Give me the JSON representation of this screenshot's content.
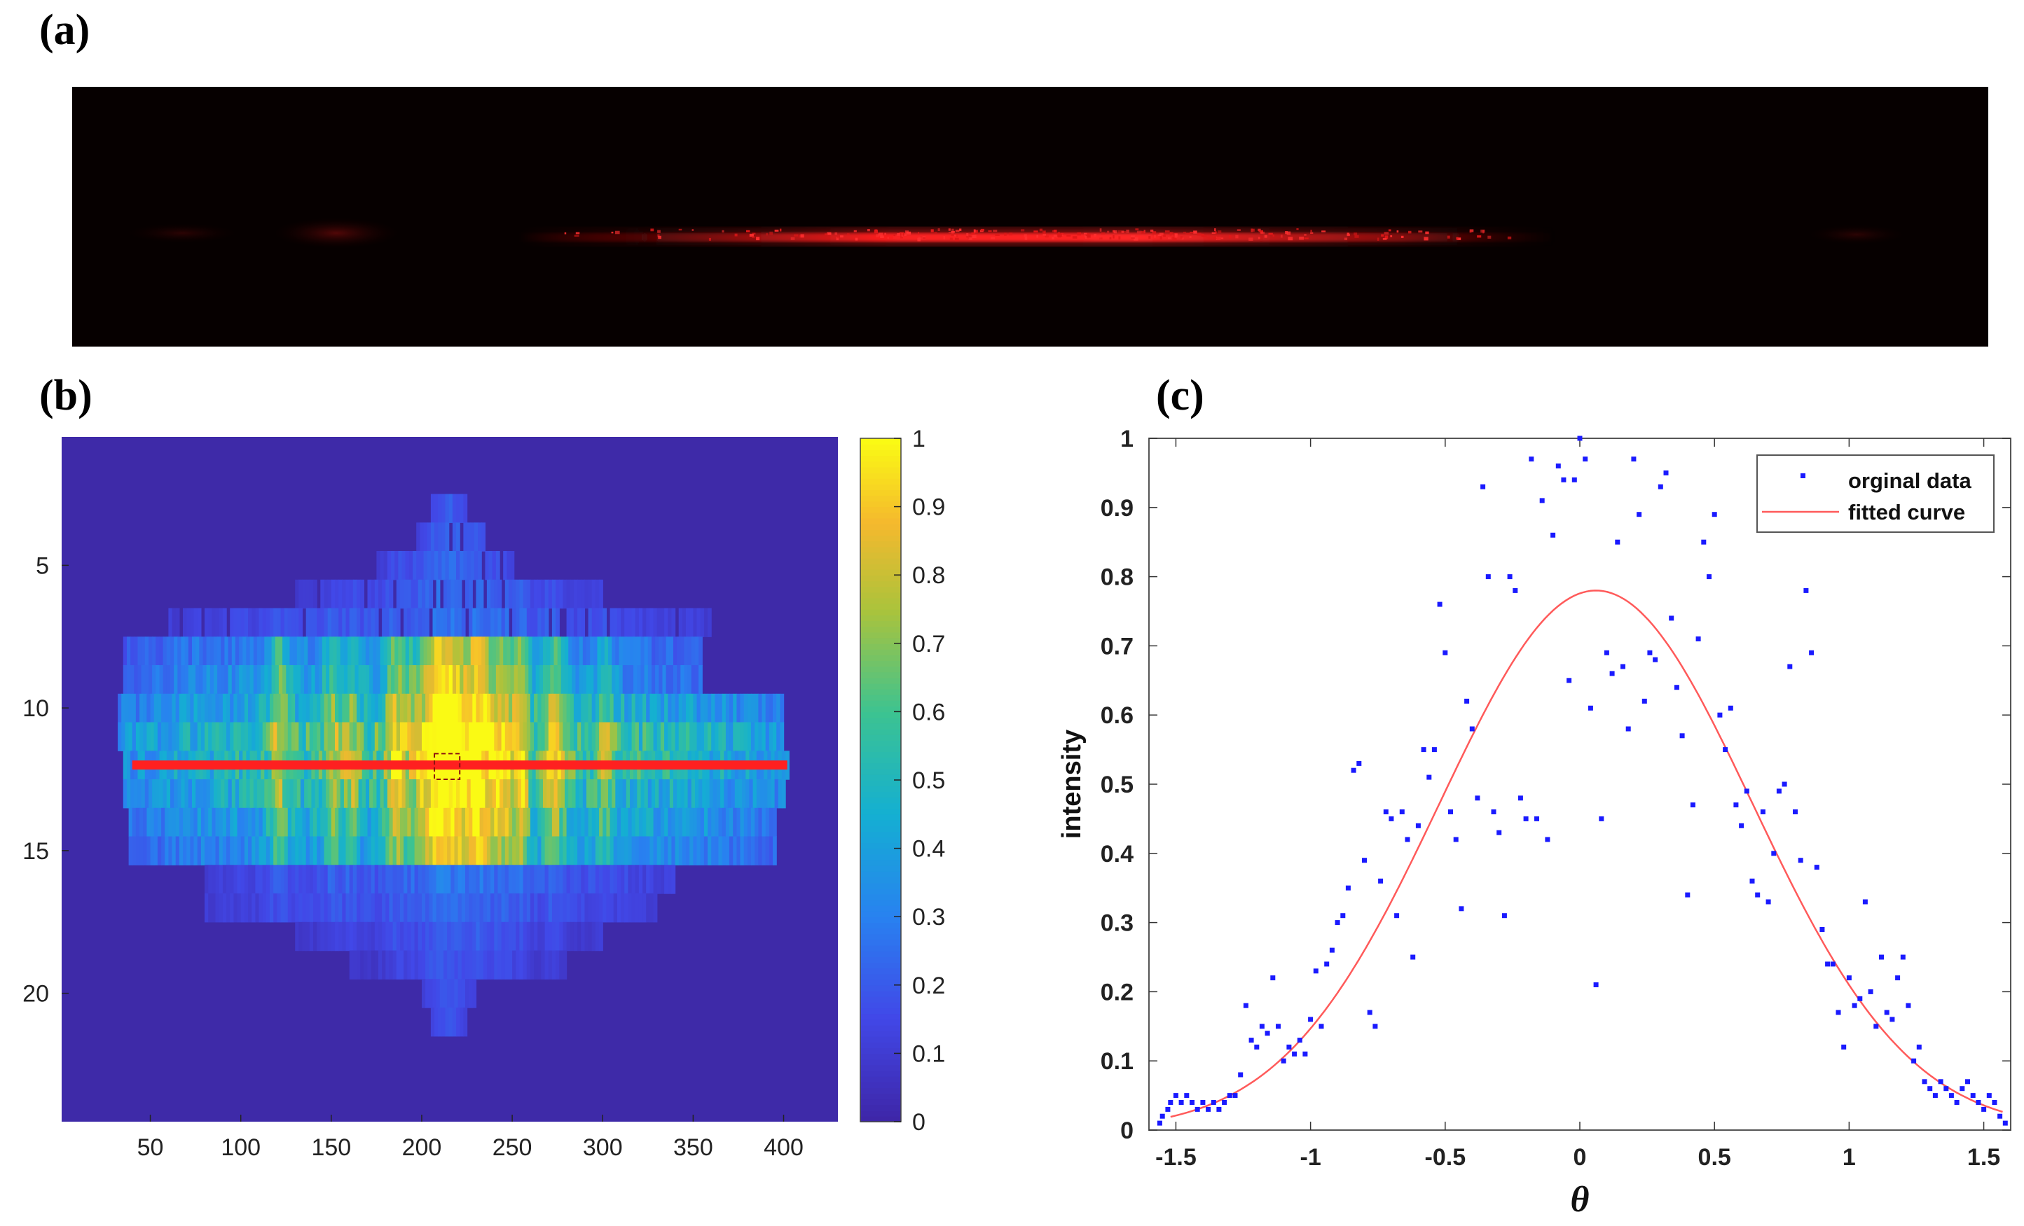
{
  "panel_labels": {
    "a": "(a)",
    "b": "(b)",
    "c": "(c)"
  },
  "colors": {
    "red": "#ff2020",
    "blue": "#1a1aff",
    "fit": "#ff5a5a",
    "heat_bg": "#3e2aa8"
  },
  "chart_data": [
    {
      "id": "a",
      "type": "other",
      "description_label": "(a)",
      "beam_color": "#ff2020"
    },
    {
      "id": "b",
      "type": "heatmap",
      "title": "(b)",
      "x_ticks": [
        "50",
        "100",
        "150",
        "200",
        "250",
        "300",
        "350",
        "400"
      ],
      "x_tick_values": [
        50,
        100,
        150,
        200,
        250,
        300,
        350,
        400
      ],
      "y_ticks": [
        "5",
        "10",
        "15",
        "20"
      ],
      "y_tick_values": [
        5,
        10,
        15,
        20
      ],
      "xlim": [
        1,
        430
      ],
      "ylim": [
        0.5,
        24.5
      ],
      "colorbar_ticks": [
        "0",
        "0.1",
        "0.2",
        "0.3",
        "0.4",
        "0.5",
        "0.6",
        "0.7",
        "0.8",
        "0.9",
        "1"
      ],
      "colorbar_values": [
        0,
        0.1,
        0.2,
        0.3,
        0.4,
        0.5,
        0.6,
        0.7,
        0.8,
        0.9,
        1
      ],
      "highlight_row": 12,
      "highlight_x_range": [
        40,
        402
      ],
      "marker_box_x": [
        207,
        221
      ]
    },
    {
      "id": "c",
      "type": "scatter",
      "title": "(c)",
      "xlabel": "θ",
      "ylabel": "intensity",
      "xlim": [
        -1.6,
        1.6
      ],
      "ylim": [
        0,
        1
      ],
      "x_ticks": [
        "-1.5",
        "-1",
        "-0.5",
        "0",
        "0.5",
        "1",
        "1.5"
      ],
      "x_tick_values": [
        -1.5,
        -1,
        -0.5,
        0,
        0.5,
        1,
        1.5
      ],
      "y_ticks": [
        "0",
        "0.1",
        "0.2",
        "0.3",
        "0.4",
        "0.5",
        "0.6",
        "0.7",
        "0.8",
        "0.9",
        "1"
      ],
      "y_tick_values": [
        0,
        0.1,
        0.2,
        0.3,
        0.4,
        0.5,
        0.6,
        0.7,
        0.8,
        0.9,
        1
      ],
      "legend": [
        "orginal data",
        "fitted curve"
      ],
      "fit": {
        "amplitude": 0.78,
        "center": 0.06,
        "sigma": 0.58
      },
      "series": [
        {
          "name": "orginal data",
          "points": [
            [
              -1.56,
              0.01
            ],
            [
              -1.55,
              0.02
            ],
            [
              -1.53,
              0.03
            ],
            [
              -1.52,
              0.04
            ],
            [
              -1.5,
              0.05
            ],
            [
              -1.48,
              0.04
            ],
            [
              -1.46,
              0.05
            ],
            [
              -1.44,
              0.04
            ],
            [
              -1.42,
              0.03
            ],
            [
              -1.4,
              0.04
            ],
            [
              -1.38,
              0.03
            ],
            [
              -1.36,
              0.04
            ],
            [
              -1.34,
              0.03
            ],
            [
              -1.32,
              0.04
            ],
            [
              -1.3,
              0.05
            ],
            [
              -1.28,
              0.05
            ],
            [
              -1.26,
              0.08
            ],
            [
              -1.24,
              0.18
            ],
            [
              -1.22,
              0.13
            ],
            [
              -1.2,
              0.12
            ],
            [
              -1.18,
              0.15
            ],
            [
              -1.16,
              0.14
            ],
            [
              -1.14,
              0.22
            ],
            [
              -1.12,
              0.15
            ],
            [
              -1.1,
              0.1
            ],
            [
              -1.08,
              0.12
            ],
            [
              -1.06,
              0.11
            ],
            [
              -1.04,
              0.13
            ],
            [
              -1.02,
              0.11
            ],
            [
              -1.0,
              0.16
            ],
            [
              -0.98,
              0.23
            ],
            [
              -0.96,
              0.15
            ],
            [
              -0.94,
              0.24
            ],
            [
              -0.92,
              0.26
            ],
            [
              -0.9,
              0.3
            ],
            [
              -0.88,
              0.31
            ],
            [
              -0.86,
              0.35
            ],
            [
              -0.84,
              0.52
            ],
            [
              -0.82,
              0.53
            ],
            [
              -0.8,
              0.39
            ],
            [
              -0.78,
              0.17
            ],
            [
              -0.76,
              0.15
            ],
            [
              -0.74,
              0.36
            ],
            [
              -0.72,
              0.46
            ],
            [
              -0.7,
              0.45
            ],
            [
              -0.68,
              0.31
            ],
            [
              -0.66,
              0.46
            ],
            [
              -0.64,
              0.42
            ],
            [
              -0.62,
              0.25
            ],
            [
              -0.6,
              0.44
            ],
            [
              -0.58,
              0.55
            ],
            [
              -0.56,
              0.51
            ],
            [
              -0.54,
              0.55
            ],
            [
              -0.52,
              0.76
            ],
            [
              -0.5,
              0.69
            ],
            [
              -0.48,
              0.46
            ],
            [
              -0.46,
              0.42
            ],
            [
              -0.44,
              0.32
            ],
            [
              -0.42,
              0.62
            ],
            [
              -0.4,
              0.58
            ],
            [
              -0.38,
              0.48
            ],
            [
              -0.36,
              0.93
            ],
            [
              -0.34,
              0.8
            ],
            [
              -0.32,
              0.46
            ],
            [
              -0.3,
              0.43
            ],
            [
              -0.28,
              0.31
            ],
            [
              -0.26,
              0.8
            ],
            [
              -0.24,
              0.78
            ],
            [
              -0.22,
              0.48
            ],
            [
              -0.2,
              0.45
            ],
            [
              -0.18,
              0.97
            ],
            [
              -0.16,
              0.45
            ],
            [
              -0.14,
              0.91
            ],
            [
              -0.12,
              0.42
            ],
            [
              -0.1,
              0.86
            ],
            [
              -0.08,
              0.96
            ],
            [
              -0.06,
              0.94
            ],
            [
              -0.04,
              0.65
            ],
            [
              -0.02,
              0.94
            ],
            [
              0.0,
              1.0
            ],
            [
              0.02,
              0.97
            ],
            [
              0.04,
              0.61
            ],
            [
              0.06,
              0.21
            ],
            [
              0.08,
              0.45
            ],
            [
              0.1,
              0.69
            ],
            [
              0.12,
              0.66
            ],
            [
              0.14,
              0.85
            ],
            [
              0.16,
              0.67
            ],
            [
              0.18,
              0.58
            ],
            [
              0.2,
              0.97
            ],
            [
              0.22,
              0.89
            ],
            [
              0.24,
              0.62
            ],
            [
              0.26,
              0.69
            ],
            [
              0.28,
              0.68
            ],
            [
              0.3,
              0.93
            ],
            [
              0.32,
              0.95
            ],
            [
              0.34,
              0.74
            ],
            [
              0.36,
              0.64
            ],
            [
              0.38,
              0.57
            ],
            [
              0.4,
              0.34
            ],
            [
              0.42,
              0.47
            ],
            [
              0.44,
              0.71
            ],
            [
              0.46,
              0.85
            ],
            [
              0.48,
              0.8
            ],
            [
              0.5,
              0.89
            ],
            [
              0.52,
              0.6
            ],
            [
              0.54,
              0.55
            ],
            [
              0.56,
              0.61
            ],
            [
              0.58,
              0.47
            ],
            [
              0.6,
              0.44
            ],
            [
              0.62,
              0.49
            ],
            [
              0.64,
              0.36
            ],
            [
              0.66,
              0.34
            ],
            [
              0.68,
              0.46
            ],
            [
              0.7,
              0.33
            ],
            [
              0.72,
              0.4
            ],
            [
              0.74,
              0.49
            ],
            [
              0.76,
              0.5
            ],
            [
              0.78,
              0.67
            ],
            [
              0.8,
              0.46
            ],
            [
              0.82,
              0.39
            ],
            [
              0.84,
              0.78
            ],
            [
              0.86,
              0.69
            ],
            [
              0.88,
              0.38
            ],
            [
              0.9,
              0.29
            ],
            [
              0.92,
              0.24
            ],
            [
              0.94,
              0.24
            ],
            [
              0.96,
              0.17
            ],
            [
              0.98,
              0.12
            ],
            [
              1.0,
              0.22
            ],
            [
              1.02,
              0.18
            ],
            [
              1.04,
              0.19
            ],
            [
              1.06,
              0.33
            ],
            [
              1.08,
              0.2
            ],
            [
              1.1,
              0.15
            ],
            [
              1.12,
              0.25
            ],
            [
              1.14,
              0.17
            ],
            [
              1.16,
              0.16
            ],
            [
              1.18,
              0.22
            ],
            [
              1.2,
              0.25
            ],
            [
              1.22,
              0.18
            ],
            [
              1.24,
              0.1
            ],
            [
              1.26,
              0.12
            ],
            [
              1.28,
              0.07
            ],
            [
              1.3,
              0.06
            ],
            [
              1.32,
              0.05
            ],
            [
              1.34,
              0.07
            ],
            [
              1.36,
              0.06
            ],
            [
              1.38,
              0.05
            ],
            [
              1.4,
              0.04
            ],
            [
              1.42,
              0.06
            ],
            [
              1.44,
              0.07
            ],
            [
              1.46,
              0.05
            ],
            [
              1.48,
              0.04
            ],
            [
              1.5,
              0.03
            ],
            [
              1.52,
              0.05
            ],
            [
              1.54,
              0.04
            ],
            [
              1.56,
              0.02
            ],
            [
              1.58,
              0.01
            ]
          ]
        },
        {
          "name": "fitted curve",
          "type": "line"
        }
      ]
    }
  ]
}
